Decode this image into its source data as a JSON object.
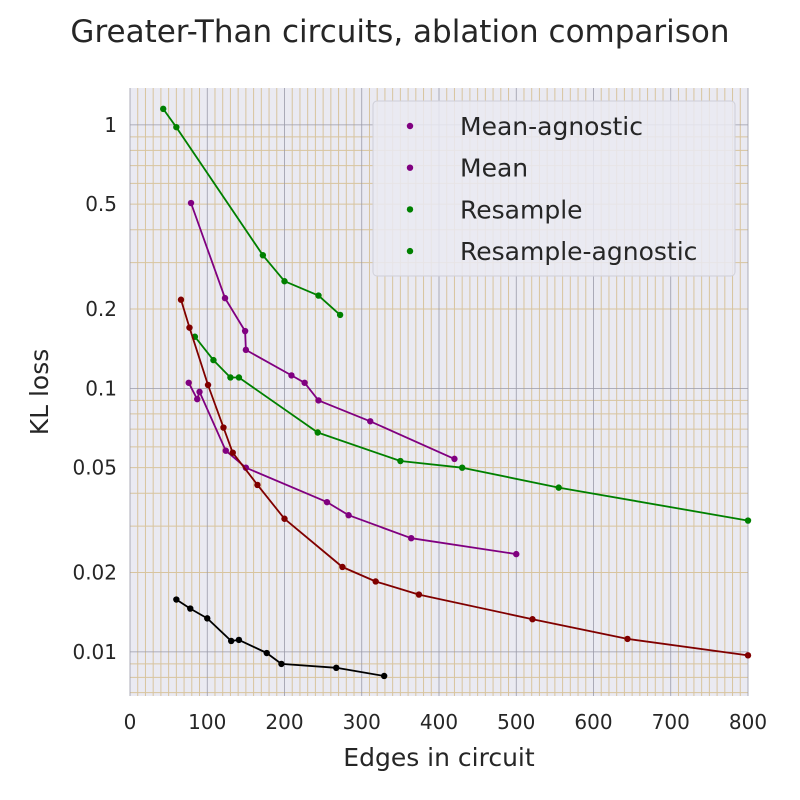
{
  "chart_data": {
    "type": "line",
    "title": "Greater-Than circuits, ablation comparison",
    "xlabel": "Edges in circuit",
    "ylabel": "KL loss",
    "xlim": [
      0,
      800
    ],
    "ylim": [
      0.0068,
      1.38
    ],
    "yscale": "log",
    "grid": true,
    "background": "#eaeaf2",
    "minor_grid_color": "#d8c49e",
    "legend_position": "upper right",
    "xticks": [
      0,
      100,
      200,
      300,
      400,
      500,
      600,
      700,
      800
    ],
    "xtick_labels": [
      "0",
      "100",
      "200",
      "300",
      "400",
      "500",
      "600",
      "700",
      "800"
    ],
    "yticks": [
      0.01,
      0.02,
      0.05,
      0.1,
      0.2,
      0.5,
      1
    ],
    "ytick_labels": [
      "0.01",
      "0.02",
      "0.05",
      "0.1",
      "0.2",
      "0.5",
      "1"
    ],
    "legend": [
      {
        "label": "Mean-agnostic",
        "color": "#800080"
      },
      {
        "label": "Mean",
        "color": "#800080"
      },
      {
        "label": "Resample",
        "color": "#008000"
      },
      {
        "label": "Resample-agnostic",
        "color": "#008000"
      }
    ],
    "series": [
      {
        "color": "#008000",
        "x": [
          43,
          60,
          172,
          200,
          244,
          272
        ],
        "y": [
          1.15,
          0.98,
          0.32,
          0.255,
          0.225,
          0.19
        ]
      },
      {
        "color": "#800080",
        "x": [
          79,
          123,
          149,
          150,
          209,
          226,
          244,
          311,
          420
        ],
        "y": [
          0.505,
          0.22,
          0.165,
          0.14,
          0.112,
          0.105,
          0.09,
          0.075,
          0.054
        ]
      },
      {
        "color": "#008000",
        "x": [
          84,
          108,
          130,
          141,
          243,
          350,
          430,
          555,
          800
        ],
        "y": [
          0.157,
          0.128,
          0.11,
          0.11,
          0.068,
          0.053,
          0.05,
          0.042,
          0.0315
        ]
      },
      {
        "color": "#800080",
        "x": [
          76,
          87,
          90,
          124,
          150,
          255,
          283,
          364,
          500
        ],
        "y": [
          0.105,
          0.091,
          0.097,
          0.058,
          0.05,
          0.037,
          0.033,
          0.027,
          0.0235
        ]
      },
      {
        "color": "#800000",
        "x": [
          66,
          77,
          101,
          121,
          133,
          165,
          200,
          275,
          318,
          374,
          521,
          644,
          800
        ],
        "y": [
          0.217,
          0.17,
          0.103,
          0.071,
          0.057,
          0.043,
          0.032,
          0.021,
          0.0185,
          0.0165,
          0.0133,
          0.0112,
          0.0097
        ]
      },
      {
        "color": "#000000",
        "x": [
          60,
          78,
          100,
          131,
          141,
          177,
          196,
          267,
          329
        ],
        "y": [
          0.0158,
          0.0146,
          0.0134,
          0.011,
          0.0111,
          0.0099,
          0.009,
          0.0087,
          0.0081
        ]
      }
    ]
  }
}
